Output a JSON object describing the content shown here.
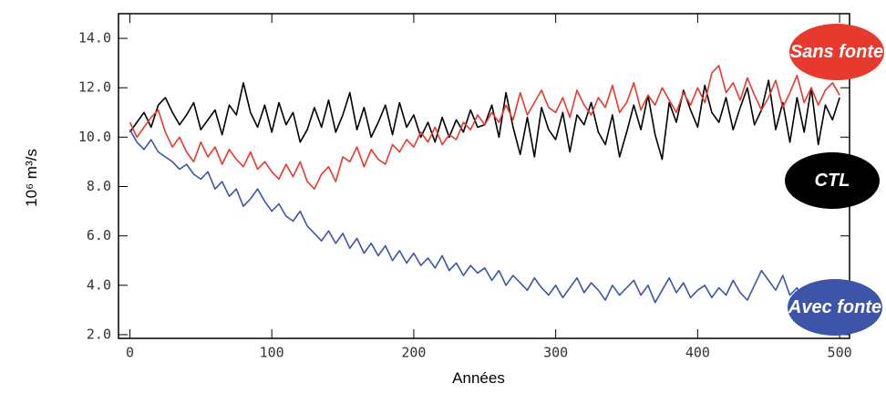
{
  "chart_data": {
    "type": "line",
    "xlabel": "Années",
    "ylabel": "10⁶ m³/s",
    "xlim": [
      -8,
      507
    ],
    "ylim": [
      1.85,
      15.0
    ],
    "xticks": [
      0,
      100,
      200,
      300,
      400,
      500
    ],
    "yticks": [
      {
        "value": 2,
        "label": "2.0"
      },
      {
        "value": 4,
        "label": "4.0"
      },
      {
        "value": 6,
        "label": "6.0"
      },
      {
        "value": 8,
        "label": "8.0"
      },
      {
        "value": 10,
        "label": "10.0"
      },
      {
        "value": 12,
        "label": "12.0"
      },
      {
        "value": 14,
        "label": "14.0"
      }
    ],
    "x": [
      0,
      5,
      10,
      15,
      20,
      25,
      30,
      35,
      40,
      45,
      50,
      55,
      60,
      65,
      70,
      75,
      80,
      85,
      90,
      95,
      100,
      105,
      110,
      115,
      120,
      125,
      130,
      135,
      140,
      145,
      150,
      155,
      160,
      165,
      170,
      175,
      180,
      185,
      190,
      195,
      200,
      205,
      210,
      215,
      220,
      225,
      230,
      235,
      240,
      245,
      250,
      255,
      260,
      265,
      270,
      275,
      280,
      285,
      290,
      295,
      300,
      305,
      310,
      315,
      320,
      325,
      330,
      335,
      340,
      345,
      350,
      355,
      360,
      365,
      370,
      375,
      380,
      385,
      390,
      395,
      400,
      405,
      410,
      415,
      420,
      425,
      430,
      435,
      440,
      445,
      450,
      455,
      460,
      465,
      470,
      475,
      480,
      485,
      490,
      495,
      500
    ],
    "series": [
      {
        "name": "CTL",
        "color": "#000000",
        "values": [
          10.2,
          10.6,
          11.0,
          10.4,
          11.3,
          11.6,
          11.0,
          10.5,
          10.9,
          11.4,
          10.3,
          10.7,
          11.1,
          10.1,
          11.3,
          10.9,
          12.2,
          11.0,
          10.4,
          11.3,
          10.2,
          11.4,
          10.5,
          11.0,
          9.8,
          10.3,
          11.2,
          10.4,
          11.5,
          10.2,
          10.9,
          11.8,
          10.3,
          11.2,
          10.0,
          10.6,
          11.3,
          10.1,
          11.4,
          10.4,
          10.9,
          10.0,
          10.6,
          9.8,
          10.8,
          10.0,
          10.7,
          10.2,
          11.1,
          10.4,
          10.5,
          11.3,
          10.0,
          11.8,
          10.4,
          9.3,
          10.8,
          9.2,
          11.2,
          10.3,
          9.9,
          11.0,
          9.4,
          10.9,
          10.5,
          11.4,
          10.2,
          9.7,
          10.9,
          9.2,
          10.2,
          11.3,
          10.3,
          11.7,
          10.1,
          9.1,
          11.4,
          10.6,
          11.9,
          11.1,
          10.4,
          12.1,
          11.0,
          10.6,
          11.6,
          10.3,
          11.2,
          12.0,
          10.5,
          11.1,
          12.3,
          10.3,
          11.4,
          9.8,
          11.6,
          10.2,
          12.0,
          9.7,
          11.3,
          10.7,
          11.6
        ]
      },
      {
        "name": "Sans fonte",
        "color": "#e8392e",
        "values": [
          10.6,
          10.0,
          10.4,
          10.8,
          11.1,
          10.2,
          9.6,
          10.0,
          9.4,
          9.0,
          9.8,
          9.2,
          9.6,
          8.9,
          9.5,
          9.1,
          8.8,
          9.4,
          8.7,
          9.0,
          8.6,
          8.3,
          8.9,
          8.4,
          9.0,
          8.2,
          7.9,
          8.5,
          8.8,
          8.2,
          9.2,
          9.0,
          9.6,
          8.8,
          9.5,
          9.1,
          8.9,
          9.7,
          9.4,
          9.9,
          9.6,
          10.2,
          9.8,
          10.4,
          9.7,
          10.1,
          9.9,
          10.6,
          10.3,
          10.9,
          10.5,
          11.0,
          10.6,
          11.3,
          10.7,
          11.8,
          10.9,
          11.4,
          11.9,
          11.2,
          11.0,
          11.6,
          10.8,
          11.9,
          11.3,
          10.9,
          11.6,
          11.2,
          12.1,
          11.0,
          11.4,
          12.2,
          11.1,
          11.7,
          11.3,
          12.0,
          11.5,
          11.0,
          11.8,
          11.3,
          12.0,
          11.4,
          12.6,
          12.9,
          11.8,
          12.2,
          11.5,
          12.4,
          11.7,
          11.1,
          11.6,
          12.3,
          11.2,
          11.8,
          12.5,
          11.4,
          12.0,
          11.3,
          11.9,
          12.2,
          11.7
        ]
      },
      {
        "name": "Avec fonte",
        "color": "#3d55a8",
        "values": [
          10.3,
          9.8,
          9.5,
          9.9,
          9.4,
          9.2,
          9.0,
          8.7,
          8.9,
          8.5,
          8.3,
          8.6,
          7.9,
          8.2,
          7.6,
          7.9,
          7.2,
          7.5,
          7.9,
          7.4,
          7.0,
          7.3,
          6.8,
          6.6,
          7.0,
          6.4,
          6.1,
          5.8,
          6.2,
          5.7,
          6.1,
          5.5,
          5.9,
          5.3,
          5.7,
          5.2,
          5.6,
          5.0,
          5.4,
          4.9,
          5.3,
          4.8,
          5.1,
          4.7,
          5.2,
          4.6,
          4.9,
          4.4,
          4.8,
          4.5,
          4.7,
          4.2,
          4.6,
          4.0,
          4.4,
          4.1,
          3.8,
          4.3,
          3.9,
          3.6,
          4.0,
          3.5,
          3.9,
          4.3,
          3.7,
          4.1,
          3.8,
          3.4,
          4.0,
          3.6,
          3.9,
          4.2,
          3.6,
          4.0,
          3.3,
          3.8,
          4.3,
          3.7,
          4.1,
          3.5,
          3.8,
          4.0,
          3.5,
          3.9,
          3.6,
          4.2,
          3.7,
          3.4,
          4.0,
          4.6,
          4.2,
          3.8,
          4.4,
          3.6,
          3.9,
          3.3,
          3.7,
          3.2,
          3.6,
          4.0,
          4.0
        ]
      }
    ]
  }
}
